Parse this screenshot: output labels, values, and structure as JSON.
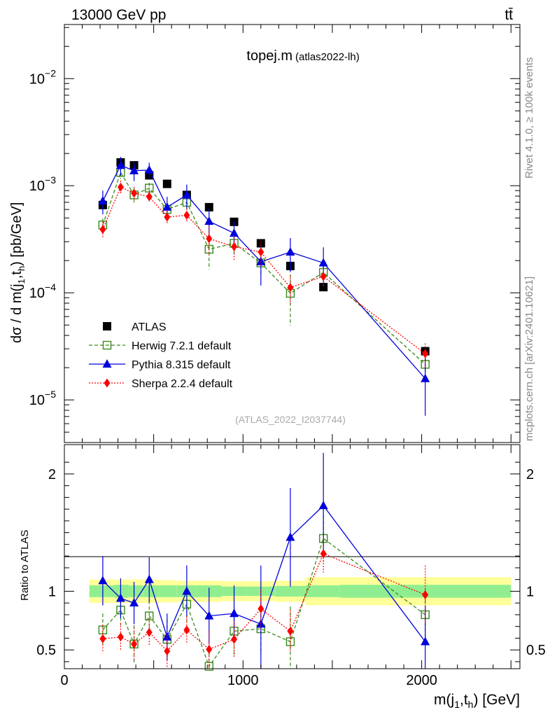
{
  "header": {
    "beam_label": "13000 GeV pp",
    "process_label": "tt̄",
    "side_note_rivet": "Rivet 4.1.0, ≥ 100k events",
    "side_note_mcplots": "mcplots.cern.ch [arXiv:2401.10621]"
  },
  "chart_data": [
    {
      "type": "scatter",
      "title": "topej.m",
      "subtitle": "(atlas2022-lh)",
      "watermark": "(ATLAS_2022_I2037744)",
      "xlabel": "m(j1,th) [GeV]",
      "ylabel": "dσ / d m(j1,th) [pb/GeV]",
      "yscale": "log",
      "ylim": [
        4e-06,
        0.032
      ],
      "xlim": [
        0,
        2550
      ],
      "y_ticks": [
        {
          "value": 1e-05,
          "base": "10",
          "exp": "−5"
        },
        {
          "value": 0.0001,
          "base": "10",
          "exp": "−4"
        },
        {
          "value": 0.001,
          "base": "10",
          "exp": "−3"
        },
        {
          "value": 0.01,
          "base": "10",
          "exp": "−2"
        }
      ],
      "x": [
        215,
        315,
        390,
        475,
        575,
        685,
        810,
        950,
        1100,
        1265,
        1450,
        2020
      ],
      "legend": [
        "ATLAS",
        "Herwig 7.2.1 default",
        "Pythia 8.315 default",
        "Sherpa 2.2.4 default"
      ],
      "series": [
        {
          "name": "ATLAS",
          "color": "#000000",
          "marker": "square-filled",
          "values": [
            0.00066,
            0.00165,
            0.00155,
            0.00125,
            0.00104,
            0.00082,
            0.00063,
            0.00046,
            0.00029,
            0.000178,
            0.000113,
            2.85e-05
          ]
        },
        {
          "name": "Herwig 7.2.1 default",
          "color": "#3a8a1c",
          "marker": "square-open",
          "values": [
            0.00043,
            0.00133,
            0.00082,
            0.00095,
            0.0006,
            0.0007,
            0.000255,
            0.00029,
            0.00019,
            9.9e-05,
            0.000155,
            2.15e-05
          ],
          "err_frac": [
            0.15,
            0.13,
            0.15,
            0.12,
            0.15,
            0.15,
            0.35,
            0.22,
            0.22,
            0.5,
            0.18,
            0.3
          ]
        },
        {
          "name": "Pythia 8.315 default",
          "color": "#0000dd",
          "marker": "triangle",
          "values": [
            0.00072,
            0.00155,
            0.00138,
            0.0014,
            0.00063,
            0.00082,
            0.000465,
            0.00036,
            0.000195,
            0.00024,
            0.00019,
            1.58e-05
          ],
          "err_frac": [
            0.25,
            0.2,
            0.2,
            0.17,
            0.25,
            0.25,
            0.3,
            0.3,
            0.4,
            0.35,
            0.4,
            0.55
          ]
        },
        {
          "name": "Sherpa 2.2.4 default",
          "color": "#ff0000",
          "marker": "diamond",
          "values": [
            0.00039,
            0.00097,
            0.00085,
            0.00079,
            0.00051,
            0.00053,
            0.00032,
            0.00027,
            0.00024,
            0.000112,
            0.000142,
            2.7e-05
          ],
          "err_frac": [
            0.18,
            0.15,
            0.15,
            0.12,
            0.15,
            0.15,
            0.3,
            0.25,
            0.25,
            0.3,
            0.2,
            0.25
          ]
        }
      ]
    },
    {
      "type": "scatter",
      "ylabel": "Ratio to ATLAS",
      "xlabel": "m(j1,th) [GeV]",
      "ylim": [
        0.34,
        2.25
      ],
      "xlim": [
        0,
        2550
      ],
      "y_ticks": [
        {
          "value": 0.5,
          "label": "0.5"
        },
        {
          "value": 1,
          "label": "1"
        },
        {
          "value": 2,
          "label": "2"
        }
      ],
      "x_ticks": [
        {
          "value": 0,
          "label": "0"
        },
        {
          "value": 1000,
          "label": "1000"
        },
        {
          "value": 2000,
          "label": "2000"
        }
      ],
      "bands": {
        "edges": [
          140,
          280,
          360,
          440,
          530,
          630,
          740,
          880,
          1020,
          1180,
          1350,
          1540,
          2500
        ],
        "stat": [
          0.05,
          0.055,
          0.05,
          0.05,
          0.05,
          0.05,
          0.05,
          0.04,
          0.04,
          0.045,
          0.05,
          0.055
        ],
        "total": [
          0.1,
          0.1,
          0.1,
          0.1,
          0.095,
          0.09,
          0.09,
          0.085,
          0.085,
          0.09,
          0.12,
          0.12
        ],
        "stat_color": "#90ee90",
        "total_color": "#ffff99"
      },
      "x": [
        215,
        315,
        390,
        475,
        575,
        685,
        810,
        950,
        1100,
        1265,
        1450,
        2020
      ],
      "series": [
        {
          "name": "Herwig 7.2.1 default",
          "color": "#3a8a1c",
          "marker": "square-open",
          "values": [
            0.67,
            0.84,
            0.55,
            0.79,
            0.59,
            0.89,
            0.36,
            0.66,
            0.68,
            0.57,
            1.45,
            0.8
          ],
          "err": [
            0.14,
            0.13,
            0.16,
            0.13,
            0.17,
            0.15,
            0.16,
            0.21,
            0.22,
            0.3,
            0.2,
            0.22
          ]
        },
        {
          "name": "Pythia 8.315 default",
          "color": "#0000dd",
          "marker": "triangle",
          "values": [
            1.09,
            0.94,
            0.9,
            1.1,
            0.61,
            1.0,
            0.79,
            0.81,
            0.72,
            1.46,
            1.73,
            0.57
          ],
          "err": [
            0.21,
            0.17,
            0.18,
            0.19,
            0.2,
            0.22,
            0.24,
            0.24,
            0.5,
            0.42,
            0.45,
            0.3
          ]
        },
        {
          "name": "Sherpa 2.2.4 default",
          "color": "#ff0000",
          "marker": "diamond",
          "values": [
            0.595,
            0.61,
            0.55,
            0.65,
            0.49,
            0.67,
            0.505,
            0.59,
            0.85,
            0.66,
            1.32,
            0.97
          ],
          "err": [
            0.12,
            0.12,
            0.14,
            0.12,
            0.14,
            0.12,
            0.16,
            0.15,
            0.17,
            0.18,
            0.16,
            0.25
          ]
        }
      ]
    }
  ]
}
